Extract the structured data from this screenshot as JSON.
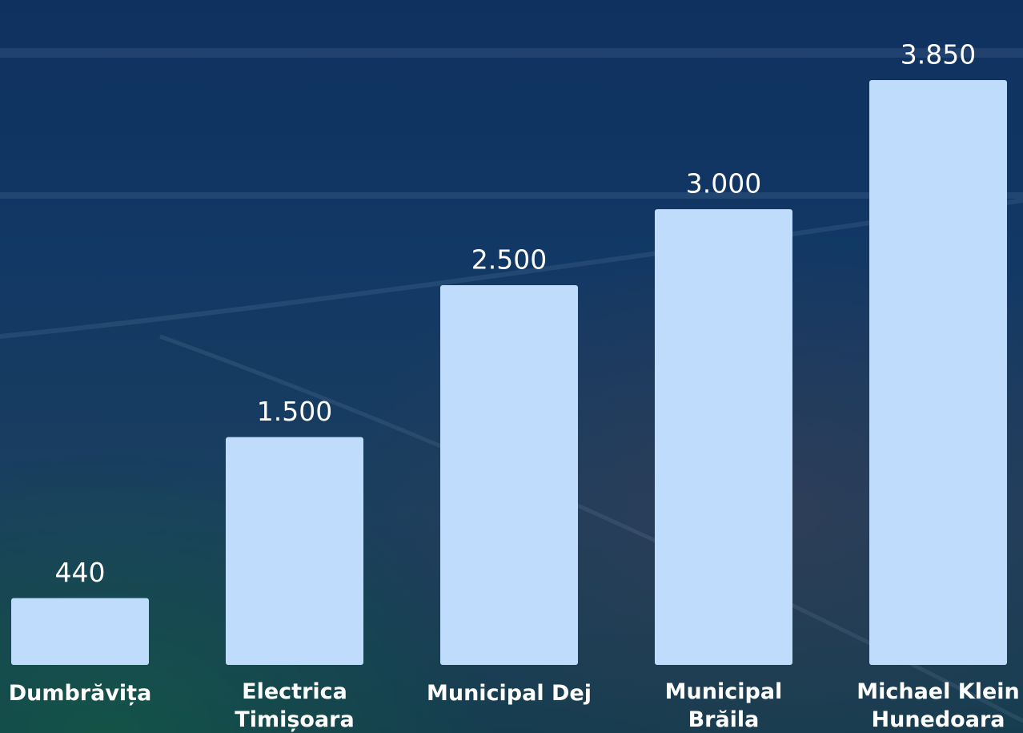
{
  "chart_data": {
    "type": "bar",
    "categories": [
      "Dumbrăvița",
      "Electrica Timișoara",
      "Municipal Dej",
      "Municipal Brăila",
      "Michael Klein Hunedoara"
    ],
    "values": [
      440,
      1500,
      2500,
      3000,
      3850
    ],
    "value_labels": [
      "440",
      "1.500",
      "2.500",
      "3.000",
      "3.850"
    ],
    "color": "#bfdcfd"
  }
}
